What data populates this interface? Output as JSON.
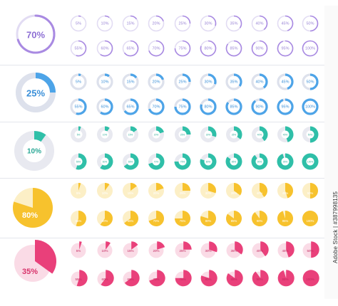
{
  "watermark_text": "Adobe Stock | #387998135",
  "rows": [
    {
      "style": "ring",
      "color": "#a98ae2",
      "track": "#e2dcf3",
      "text_color": "#8d6fd4",
      "label_color": "#9b86d6",
      "big": {
        "value": 70,
        "label": "70%"
      },
      "small": [
        {
          "value": 5,
          "label": "5%"
        },
        {
          "value": 10,
          "label": "10%"
        },
        {
          "value": 15,
          "label": "15%"
        },
        {
          "value": 20,
          "label": "20%"
        },
        {
          "value": 25,
          "label": "25%"
        },
        {
          "value": 30,
          "label": "30%"
        },
        {
          "value": 35,
          "label": "35%"
        },
        {
          "value": 40,
          "label": "40%"
        },
        {
          "value": 45,
          "label": "45%"
        },
        {
          "value": 50,
          "label": "50%"
        },
        {
          "value": 55,
          "label": "55%"
        },
        {
          "value": 60,
          "label": "60%"
        },
        {
          "value": 65,
          "label": "65%"
        },
        {
          "value": 70,
          "label": "70%"
        },
        {
          "value": 75,
          "label": "75%"
        },
        {
          "value": 80,
          "label": "80%"
        },
        {
          "value": 85,
          "label": "85%"
        },
        {
          "value": 90,
          "label": "90%"
        },
        {
          "value": 95,
          "label": "95%"
        },
        {
          "value": 100,
          "label": "100%"
        }
      ]
    },
    {
      "style": "thick-ring",
      "color": "#4da4e8",
      "track": "#dde1ec",
      "text_color": "#3a8fd8",
      "label_color": "#3a8fd8",
      "big": {
        "value": 25,
        "label": "25%"
      },
      "small": [
        {
          "value": 5,
          "label": "5%"
        },
        {
          "value": 10,
          "label": "10%"
        },
        {
          "value": 15,
          "label": "15%"
        },
        {
          "value": 20,
          "label": "20%"
        },
        {
          "value": 25,
          "label": "25%"
        },
        {
          "value": 30,
          "label": "30%"
        },
        {
          "value": 35,
          "label": "35%"
        },
        {
          "value": 40,
          "label": "40%"
        },
        {
          "value": 45,
          "label": "45%"
        },
        {
          "value": 50,
          "label": "50%"
        },
        {
          "value": 55,
          "label": "55%"
        },
        {
          "value": 60,
          "label": "60%"
        },
        {
          "value": 65,
          "label": "65%"
        },
        {
          "value": 70,
          "label": "70%"
        },
        {
          "value": 75,
          "label": "75%"
        },
        {
          "value": 80,
          "label": "80%"
        },
        {
          "value": 85,
          "label": "85%"
        },
        {
          "value": 90,
          "label": "90%"
        },
        {
          "value": 95,
          "label": "95%"
        },
        {
          "value": 100,
          "label": "100%"
        }
      ]
    },
    {
      "style": "wide-ring",
      "color": "#2fbfa8",
      "track": "#e8e9f0",
      "text_color": "#2aa896",
      "label_color": "#ffffff",
      "big": {
        "value": 10,
        "label": "10%"
      },
      "small": [
        {
          "value": 5,
          "label": "5%"
        },
        {
          "value": 10,
          "label": "10%"
        },
        {
          "value": 15,
          "label": "15%"
        },
        {
          "value": 20,
          "label": "20%"
        },
        {
          "value": 25,
          "label": "25%"
        },
        {
          "value": 30,
          "label": "30%"
        },
        {
          "value": 35,
          "label": "35%"
        },
        {
          "value": 40,
          "label": "40%"
        },
        {
          "value": 45,
          "label": "45%"
        },
        {
          "value": 50,
          "label": "50%"
        },
        {
          "value": 55,
          "label": "55%"
        },
        {
          "value": 60,
          "label": "60%"
        },
        {
          "value": 65,
          "label": "65%"
        },
        {
          "value": 70,
          "label": "70%"
        },
        {
          "value": 75,
          "label": "75%"
        },
        {
          "value": 80,
          "label": "80%"
        },
        {
          "value": 85,
          "label": "85%"
        },
        {
          "value": 90,
          "label": "90%"
        },
        {
          "value": 95,
          "label": "95%"
        },
        {
          "value": 100,
          "label": "100%"
        }
      ]
    },
    {
      "style": "pie",
      "color": "#f7c22d",
      "track": "#fcefc6",
      "text_color": "#ffffff",
      "label_color": "#ffffff",
      "big": {
        "value": 80,
        "label": "80%"
      },
      "small": [
        {
          "value": 5,
          "label": "5%"
        },
        {
          "value": 10,
          "label": "10%"
        },
        {
          "value": 15,
          "label": "15%"
        },
        {
          "value": 20,
          "label": "20%"
        },
        {
          "value": 25,
          "label": "25%"
        },
        {
          "value": 30,
          "label": "30%"
        },
        {
          "value": 35,
          "label": "35%"
        },
        {
          "value": 40,
          "label": "40%"
        },
        {
          "value": 45,
          "label": "45%"
        },
        {
          "value": 50,
          "label": "50%"
        },
        {
          "value": 55,
          "label": "55%"
        },
        {
          "value": 60,
          "label": "60%"
        },
        {
          "value": 65,
          "label": "65%"
        },
        {
          "value": 70,
          "label": "70%"
        },
        {
          "value": 75,
          "label": "75%"
        },
        {
          "value": 80,
          "label": "80%"
        },
        {
          "value": 85,
          "label": "85%"
        },
        {
          "value": 90,
          "label": "90%"
        },
        {
          "value": 95,
          "label": "95%"
        },
        {
          "value": 100,
          "label": "100%"
        }
      ]
    },
    {
      "style": "pie-offset",
      "color": "#e9407a",
      "track": "#fadbe6",
      "text_color": "#d8336b",
      "label_color": "#c2285e",
      "big": {
        "value": 35,
        "label": "35%"
      },
      "small": [
        {
          "value": 5,
          "label": "5%"
        },
        {
          "value": 10,
          "label": "10%"
        },
        {
          "value": 15,
          "label": "15%"
        },
        {
          "value": 20,
          "label": "20%"
        },
        {
          "value": 25,
          "label": "25%"
        },
        {
          "value": 30,
          "label": "30%"
        },
        {
          "value": 35,
          "label": "35%"
        },
        {
          "value": 40,
          "label": "40%"
        },
        {
          "value": 45,
          "label": "45%"
        },
        {
          "value": 50,
          "label": "50%"
        },
        {
          "value": 55,
          "label": "55%"
        },
        {
          "value": 60,
          "label": "60%"
        },
        {
          "value": 65,
          "label": "65%"
        },
        {
          "value": 70,
          "label": "70%"
        },
        {
          "value": 75,
          "label": "75%"
        },
        {
          "value": 80,
          "label": "80%"
        },
        {
          "value": 85,
          "label": "85%"
        },
        {
          "value": 90,
          "label": "90%"
        },
        {
          "value": 95,
          "label": "95%"
        },
        {
          "value": 100,
          "label": "100%"
        }
      ]
    }
  ]
}
